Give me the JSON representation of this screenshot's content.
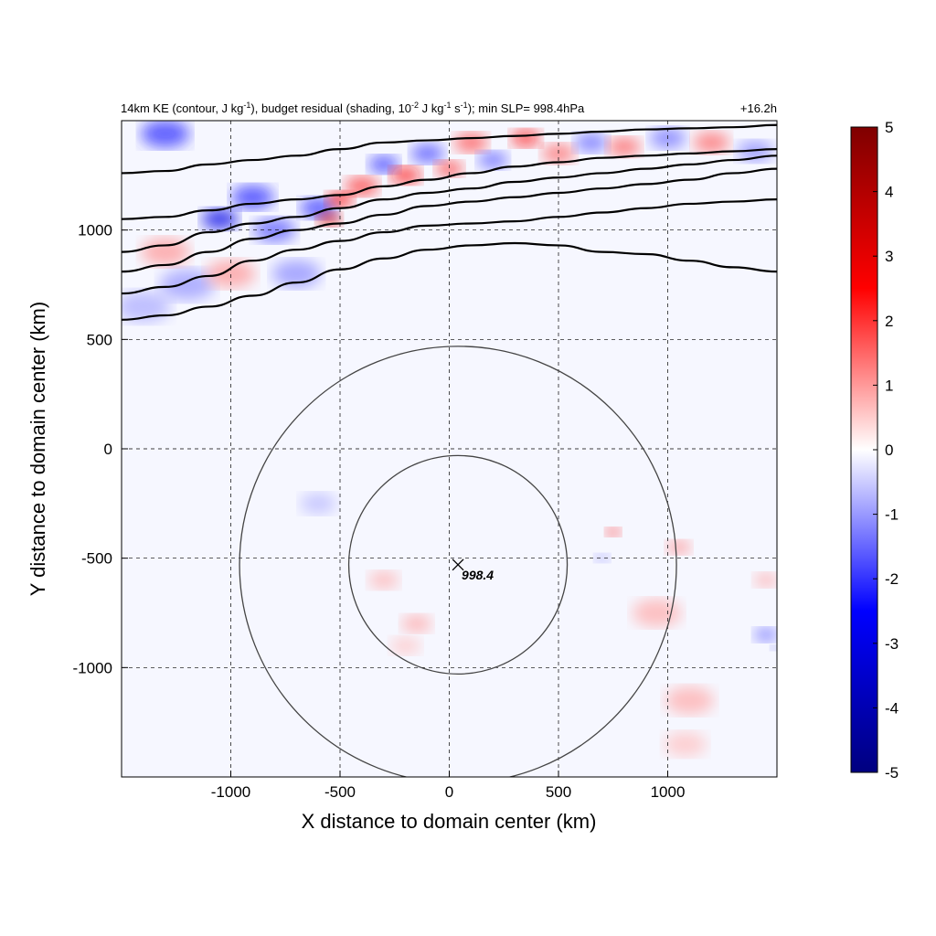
{
  "chart_data": {
    "type": "heatmap",
    "title_left": "14km KE (contour, J kg-1), budget residual (shading, 10-2 J kg-1 s-1); min SLP= 998.4hPa",
    "title_parts": {
      "a": "14km KE (contour, J kg",
      "sup1": "-1",
      "b": "), budget residual (shading, 10",
      "sup2": "-2",
      "c": " J kg",
      "sup3": "-1",
      "d": " s",
      "sup4": "-1",
      "e": "); min SLP= 998.4hPa"
    },
    "title_right": "+16.2h",
    "xlabel": "X distance to domain center (km)",
    "ylabel": "Y distance to domain center (km)",
    "xlim": [
      -1500,
      1500
    ],
    "ylim": [
      -1500,
      1500
    ],
    "x_ticks": [
      -1000,
      -500,
      0,
      500,
      1000
    ],
    "x_tick_labels": [
      "-1000",
      "-500",
      "0",
      "500",
      "1000"
    ],
    "y_ticks": [
      -1000,
      -500,
      0,
      500,
      1000
    ],
    "y_tick_labels": [
      "-1000",
      "-500",
      "0",
      "500",
      "1000"
    ],
    "grid": true,
    "colorbar": {
      "min": -5,
      "max": 5,
      "ticks": [
        5,
        4,
        3,
        2,
        1,
        0,
        -1,
        -2,
        -3,
        -4,
        -5
      ],
      "tick_labels": [
        "5",
        "4",
        "3",
        "2",
        "1",
        "0",
        "-1",
        "-2",
        "-3",
        "-4",
        "-5"
      ],
      "colors": [
        "#00007f",
        "#0000ff",
        "#ffffff",
        "#ff0000",
        "#7f0000"
      ]
    },
    "storm_center": {
      "x": 40,
      "y": -530,
      "label": "998.4"
    },
    "range_circles_km": [
      500,
      1000
    ],
    "ke_contours": [
      {
        "x": [
          -1500,
          -1300,
          -1100,
          -900,
          -700,
          -500,
          -300,
          -100,
          100,
          300,
          500,
          700,
          900,
          1100,
          1300,
          1500
        ],
        "y": [
          590,
          610,
          650,
          700,
          760,
          820,
          870,
          910,
          930,
          940,
          930,
          900,
          890,
          860,
          830,
          810
        ]
      },
      {
        "x": [
          -1500,
          -1300,
          -1100,
          -900,
          -700,
          -500,
          -300,
          -100,
          100,
          300,
          500,
          700,
          900,
          1100,
          1300,
          1500
        ],
        "y": [
          710,
          740,
          790,
          860,
          910,
          950,
          990,
          1020,
          1030,
          1040,
          1060,
          1080,
          1100,
          1120,
          1130,
          1140
        ]
      },
      {
        "x": [
          -1500,
          -1300,
          -1100,
          -900,
          -700,
          -500,
          -300,
          -100,
          100,
          300,
          500,
          700,
          900,
          1100,
          1300,
          1500
        ],
        "y": [
          810,
          840,
          900,
          960,
          1000,
          1030,
          1070,
          1110,
          1130,
          1150,
          1170,
          1190,
          1210,
          1230,
          1260,
          1280
        ]
      },
      {
        "x": [
          -1500,
          -1300,
          -1100,
          -900,
          -700,
          -500,
          -300,
          -100,
          100,
          300,
          500,
          700,
          900,
          1100,
          1300,
          1500
        ],
        "y": [
          900,
          930,
          990,
          1030,
          1060,
          1100,
          1140,
          1170,
          1190,
          1220,
          1240,
          1260,
          1280,
          1300,
          1320,
          1340
        ]
      },
      {
        "x": [
          -1500,
          -1300,
          -1100,
          -900,
          -700,
          -500,
          -300,
          -100,
          100,
          300,
          500,
          700,
          900,
          1100,
          1300,
          1500
        ],
        "y": [
          1050,
          1060,
          1090,
          1120,
          1140,
          1160,
          1200,
          1230,
          1260,
          1290,
          1310,
          1330,
          1340,
          1350,
          1360,
          1370
        ]
      },
      {
        "x": [
          -1500,
          -1300,
          -1100,
          -900,
          -700,
          -500,
          -300,
          -100,
          100,
          300,
          500,
          700,
          900,
          1100,
          1300,
          1500
        ],
        "y": [
          1260,
          1270,
          1300,
          1320,
          1340,
          1370,
          1400,
          1410,
          1420,
          1430,
          1440,
          1450,
          1460,
          1465,
          1470,
          1480
        ]
      }
    ],
    "anomalies": [
      {
        "x": -1300,
        "y": 1440,
        "v": -2.0,
        "r": 80
      },
      {
        "x": -1050,
        "y": 1050,
        "v": -3.0,
        "r": 60
      },
      {
        "x": -900,
        "y": 1150,
        "v": -2.0,
        "r": 70
      },
      {
        "x": -800,
        "y": 1000,
        "v": -1.6,
        "r": 70
      },
      {
        "x": -600,
        "y": 1100,
        "v": -2.0,
        "r": 60
      },
      {
        "x": -550,
        "y": 1050,
        "v": 3.2,
        "r": 40
      },
      {
        "x": -500,
        "y": 1140,
        "v": 2.5,
        "r": 45
      },
      {
        "x": -400,
        "y": 1200,
        "v": 2.0,
        "r": 55
      },
      {
        "x": -300,
        "y": 1300,
        "v": -2.0,
        "r": 50
      },
      {
        "x": -200,
        "y": 1250,
        "v": 2.3,
        "r": 50
      },
      {
        "x": -100,
        "y": 1350,
        "v": -1.8,
        "r": 55
      },
      {
        "x": 0,
        "y": 1280,
        "v": 2.0,
        "r": 45
      },
      {
        "x": 100,
        "y": 1400,
        "v": 1.8,
        "r": 55
      },
      {
        "x": 200,
        "y": 1320,
        "v": -1.6,
        "r": 50
      },
      {
        "x": 350,
        "y": 1420,
        "v": 2.2,
        "r": 50
      },
      {
        "x": 500,
        "y": 1350,
        "v": 1.5,
        "r": 55
      },
      {
        "x": 650,
        "y": 1400,
        "v": -1.5,
        "r": 55
      },
      {
        "x": 800,
        "y": 1380,
        "v": 1.6,
        "r": 55
      },
      {
        "x": 1000,
        "y": 1420,
        "v": -1.4,
        "r": 60
      },
      {
        "x": 1200,
        "y": 1400,
        "v": 1.5,
        "r": 60
      },
      {
        "x": 1400,
        "y": 1360,
        "v": -1.2,
        "r": 60
      },
      {
        "x": -1200,
        "y": 750,
        "v": -1.0,
        "r": 90
      },
      {
        "x": -1000,
        "y": 800,
        "v": 1.0,
        "r": 80
      },
      {
        "x": -700,
        "y": 800,
        "v": -1.1,
        "r": 80
      },
      {
        "x": -1300,
        "y": 900,
        "v": 1.0,
        "r": 80
      },
      {
        "x": -1400,
        "y": 650,
        "v": -0.8,
        "r": 90
      },
      {
        "x": -600,
        "y": -250,
        "v": -0.7,
        "r": 60
      },
      {
        "x": -300,
        "y": -600,
        "v": 0.8,
        "r": 50
      },
      {
        "x": -150,
        "y": -800,
        "v": 0.9,
        "r": 50
      },
      {
        "x": -200,
        "y": -900,
        "v": 0.6,
        "r": 50
      },
      {
        "x": 750,
        "y": -380,
        "v": 2.5,
        "r": 25
      },
      {
        "x": 700,
        "y": -500,
        "v": -1.2,
        "r": 25
      },
      {
        "x": 1050,
        "y": -450,
        "v": 1.2,
        "r": 40
      },
      {
        "x": 950,
        "y": -750,
        "v": 0.8,
        "r": 80
      },
      {
        "x": 1100,
        "y": -1150,
        "v": 0.8,
        "r": 80
      },
      {
        "x": 1080,
        "y": -1350,
        "v": 0.6,
        "r": 70
      },
      {
        "x": 1450,
        "y": -850,
        "v": -1.5,
        "r": 40
      },
      {
        "x": 1450,
        "y": -600,
        "v": 0.9,
        "r": 40
      },
      {
        "x": 1490,
        "y": -910,
        "v": -3.0,
        "r": 15
      }
    ]
  }
}
